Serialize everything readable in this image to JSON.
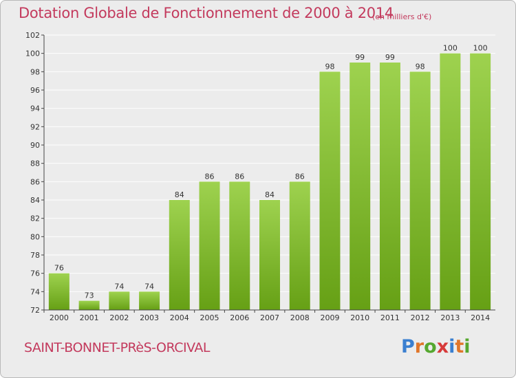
{
  "header": {
    "title": "Dotation Globale de Fonctionnement de 2000 à 2014",
    "unit": "(en milliers d'€)"
  },
  "footer": {
    "location": "SAINT-BONNET-PRèS-ORCIVAL",
    "logo": [
      "P",
      "r",
      "o",
      "x",
      "i",
      "t",
      "i"
    ]
  },
  "colors": {
    "bar_top": "#9ed24f",
    "bar_bottom": "#66a015",
    "title": "#c33a5d",
    "logo": [
      "#3a7fd0",
      "#e0762a",
      "#56a830",
      "#d73a3a",
      "#3a7fd0",
      "#e0762a",
      "#56a830"
    ]
  },
  "chart_data": {
    "type": "bar",
    "title": "Dotation Globale de Fonctionnement de 2000 à 2014",
    "xlabel": "",
    "ylabel": "",
    "categories": [
      "2000",
      "2001",
      "2002",
      "2003",
      "2004",
      "2005",
      "2006",
      "2007",
      "2008",
      "2009",
      "2010",
      "2011",
      "2012",
      "2013",
      "2014"
    ],
    "values": [
      76,
      73,
      74,
      74,
      84,
      86,
      86,
      84,
      86,
      98,
      99,
      99,
      98,
      100,
      100
    ],
    "ylim": [
      72,
      102
    ],
    "yticks": [
      72,
      74,
      76,
      78,
      80,
      82,
      84,
      86,
      88,
      90,
      92,
      94,
      96,
      98,
      100,
      102
    ],
    "grid": true,
    "legend": "none"
  }
}
